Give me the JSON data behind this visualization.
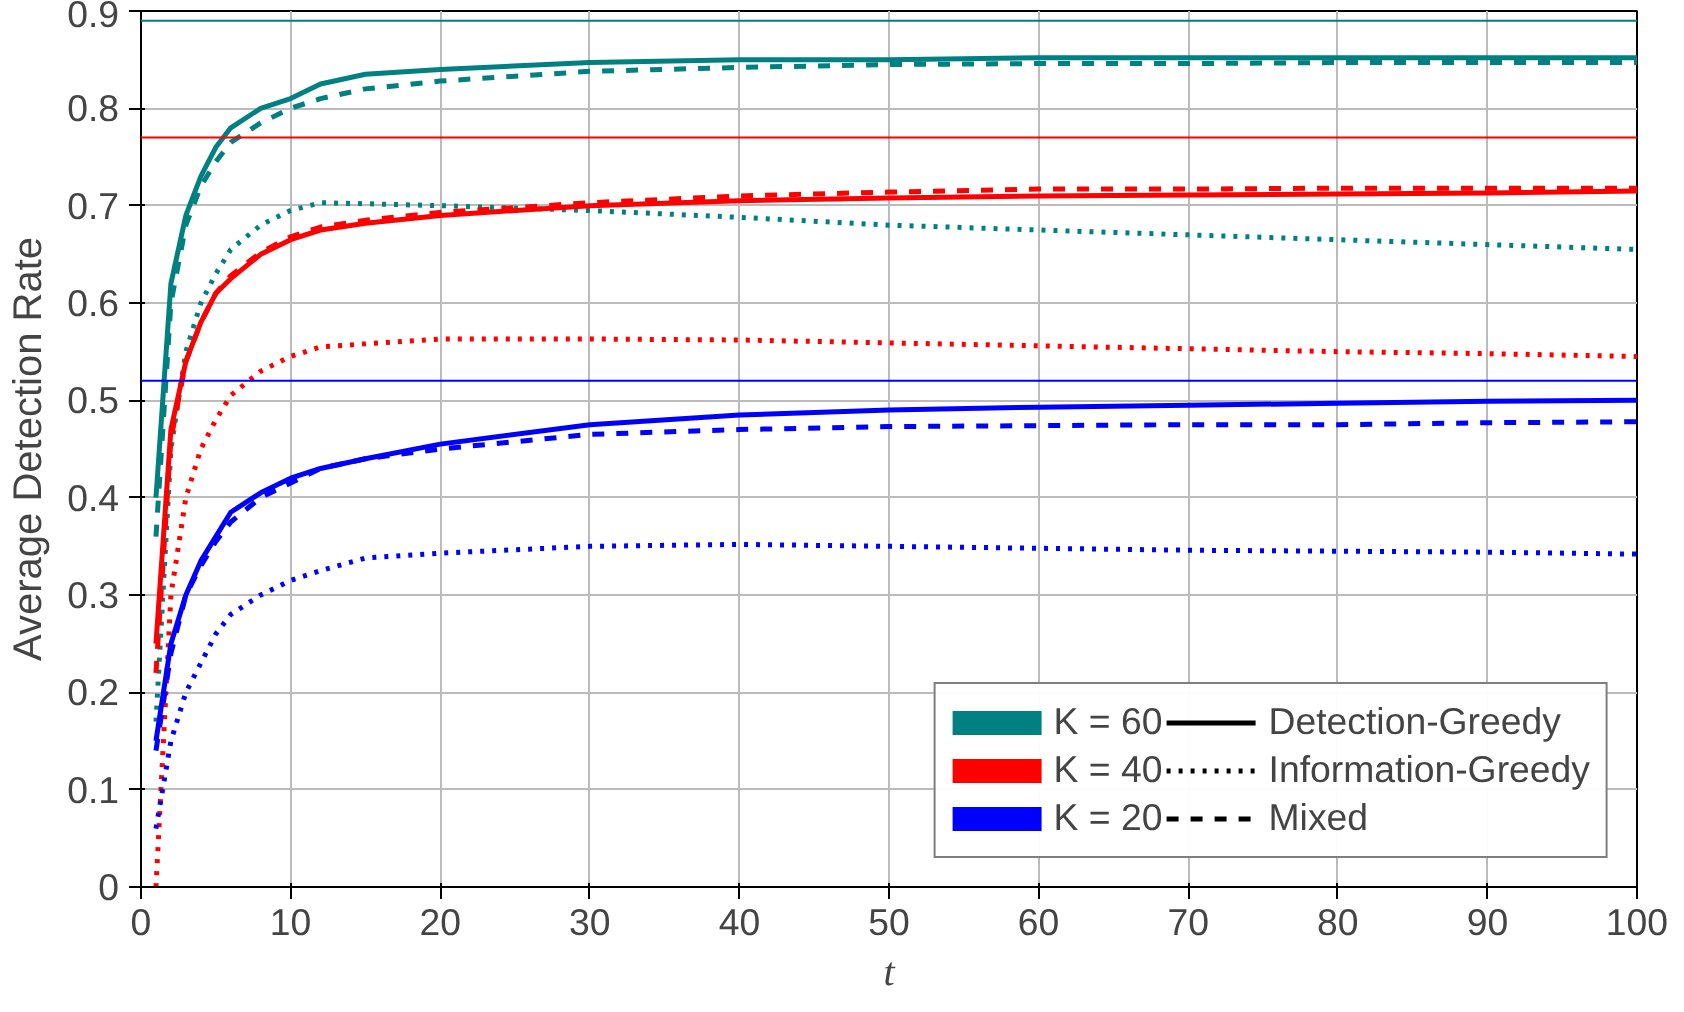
{
  "chart_data": {
    "type": "line",
    "xlabel": "t",
    "ylabel": "Average Detection Rate",
    "x": [
      1,
      2,
      3,
      4,
      5,
      6,
      8,
      10,
      12,
      15,
      20,
      30,
      40,
      50,
      60,
      70,
      80,
      90,
      100
    ],
    "xlim": [
      0,
      100
    ],
    "xticks": [
      0,
      10,
      20,
      30,
      40,
      50,
      60,
      70,
      80,
      90,
      100
    ],
    "ylim": [
      0,
      0.9
    ],
    "yticks": [
      0,
      0.1,
      0.2,
      0.3,
      0.4,
      0.5,
      0.6,
      0.7,
      0.8,
      0.9
    ],
    "grid": true,
    "legend": "bottom right",
    "marker": "none",
    "series": [
      {
        "name": "K = 60",
        "color": "#008080",
        "line_style": "solid",
        "values": [
          0.4,
          0.62,
          0.69,
          0.73,
          0.76,
          0.78,
          0.8,
          0.81,
          0.825,
          0.835,
          0.84,
          0.847,
          0.85,
          0.85,
          0.852,
          0.852,
          0.852,
          0.852,
          0.852
        ]
      },
      {
        "color": "#008080",
        "line_style": "dotted",
        "values": [
          0.17,
          0.45,
          0.55,
          0.6,
          0.63,
          0.655,
          0.68,
          0.695,
          0.703,
          0.702,
          0.7,
          0.695,
          0.688,
          0.68,
          0.675,
          0.67,
          0.665,
          0.66,
          0.655
        ]
      },
      {
        "color": "#008080",
        "line_style": "dashed",
        "values": [
          0.36,
          0.6,
          0.68,
          0.72,
          0.745,
          0.765,
          0.785,
          0.8,
          0.81,
          0.82,
          0.828,
          0.838,
          0.842,
          0.845,
          0.846,
          0.846,
          0.847,
          0.847,
          0.847
        ]
      },
      {
        "name": "K = 40",
        "color": "#ff0000",
        "line_style": "solid",
        "values": [
          0.25,
          0.47,
          0.54,
          0.58,
          0.61,
          0.625,
          0.65,
          0.665,
          0.675,
          0.682,
          0.69,
          0.7,
          0.705,
          0.708,
          0.71,
          0.711,
          0.712,
          0.713,
          0.715
        ]
      },
      {
        "color": "#ff0000",
        "line_style": "dotted",
        "values": [
          0.0,
          0.3,
          0.4,
          0.45,
          0.48,
          0.505,
          0.53,
          0.545,
          0.555,
          0.558,
          0.563,
          0.563,
          0.562,
          0.559,
          0.556,
          0.553,
          0.55,
          0.548,
          0.545
        ]
      },
      {
        "color": "#ff0000",
        "line_style": "dashed",
        "values": [
          0.22,
          0.46,
          0.54,
          0.58,
          0.61,
          0.628,
          0.652,
          0.668,
          0.678,
          0.685,
          0.693,
          0.703,
          0.71,
          0.714,
          0.717,
          0.717,
          0.718,
          0.718,
          0.718
        ]
      },
      {
        "name": "K = 20",
        "color": "#0000ff",
        "line_style": "solid",
        "values": [
          0.15,
          0.25,
          0.3,
          0.335,
          0.36,
          0.385,
          0.405,
          0.42,
          0.43,
          0.44,
          0.455,
          0.475,
          0.485,
          0.49,
          0.493,
          0.495,
          0.497,
          0.499,
          0.5
        ]
      },
      {
        "color": "#0000ff",
        "line_style": "dotted",
        "values": [
          0.06,
          0.15,
          0.2,
          0.23,
          0.26,
          0.28,
          0.3,
          0.315,
          0.325,
          0.338,
          0.343,
          0.35,
          0.352,
          0.35,
          0.348,
          0.346,
          0.345,
          0.344,
          0.342
        ]
      },
      {
        "color": "#0000ff",
        "line_style": "dashed",
        "values": [
          0.14,
          0.24,
          0.3,
          0.33,
          0.355,
          0.375,
          0.4,
          0.415,
          0.43,
          0.44,
          0.45,
          0.465,
          0.47,
          0.473,
          0.474,
          0.475,
          0.475,
          0.477,
          0.478
        ]
      }
    ],
    "ref_lines": [
      {
        "axis": "y",
        "value": 0.89,
        "color": "#008080"
      },
      {
        "axis": "y",
        "value": 0.77,
        "color": "#ff0000"
      },
      {
        "axis": "y",
        "value": 0.52,
        "color": "#0000ff"
      }
    ],
    "annotations": [
      "Detection-Greedy",
      "Information-Greedy",
      "Mixed"
    ]
  }
}
